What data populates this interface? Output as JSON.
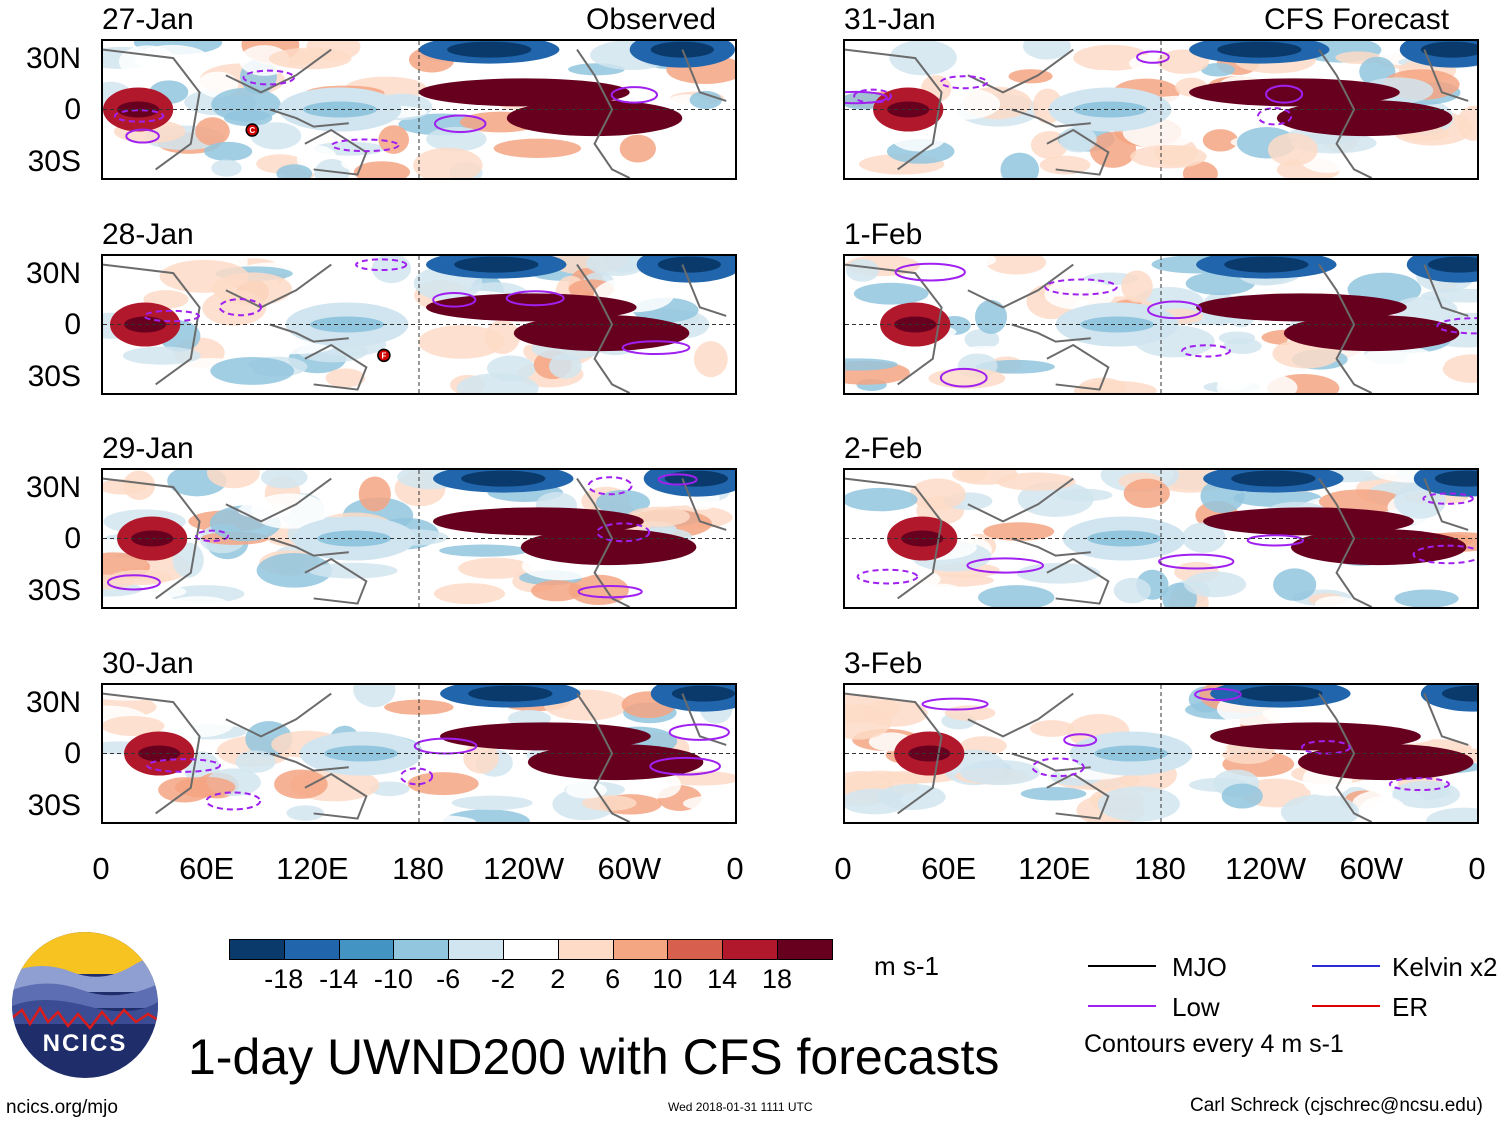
{
  "chart_data": {
    "type": "heatmap",
    "title": "1-day UWND200 with CFS forecasts",
    "variable": "200 hPa zonal wind anomaly",
    "units": "m s-1",
    "observed_label": "Observed",
    "forecast_label": "CFS Forecast",
    "panels_left": [
      {
        "date": "27-Jan",
        "storm": "C"
      },
      {
        "date": "28-Jan",
        "storm": "F"
      },
      {
        "date": "29-Jan",
        "storm": ""
      },
      {
        "date": "30-Jan",
        "storm": ""
      }
    ],
    "panels_right": [
      {
        "date": "31-Jan"
      },
      {
        "date": "1-Feb"
      },
      {
        "date": "2-Feb"
      },
      {
        "date": "3-Feb"
      }
    ],
    "y_ticks": [
      "30N",
      "0",
      "30S"
    ],
    "x_ticks": [
      "0",
      "60E",
      "120E",
      "180",
      "120W",
      "60W",
      "0"
    ],
    "xlim": [
      0,
      360
    ],
    "ylim": [
      -40,
      40
    ],
    "colorbar": {
      "labels": [
        "-18",
        "-14",
        "-10",
        "-6",
        "-2",
        "2",
        "6",
        "10",
        "14",
        "18"
      ],
      "colors": [
        "#0a3a6b",
        "#2166ac",
        "#4393c3",
        "#92c5de",
        "#d1e5f0",
        "#ffffff",
        "#fddbc7",
        "#f4a582",
        "#d6604d",
        "#b2182b",
        "#67001f"
      ],
      "units": "m s-1"
    },
    "legend": {
      "items": [
        {
          "label": "MJO",
          "color": "#000000"
        },
        {
          "label": "Kelvin x2",
          "color": "#2b2bd6"
        },
        {
          "label": "Low",
          "color": "#a020f0"
        },
        {
          "label": "ER",
          "color": "#e00000"
        }
      ],
      "note": "Contours every 4 m s-1"
    },
    "features": [
      {
        "lon_start": 180,
        "lon_end": 300,
        "lat": 10,
        "value": 18
      },
      {
        "lon_start": 230,
        "lon_end": 330,
        "lat": -5,
        "value": 18
      },
      {
        "lon_start": 0,
        "lon_end": 40,
        "lat": 0,
        "value": 14
      },
      {
        "lon_start": 180,
        "lon_end": 260,
        "lat": 35,
        "value": -18
      },
      {
        "lon_start": 300,
        "lon_end": 360,
        "lat": 35,
        "value": -18
      },
      {
        "lon_start": 100,
        "lon_end": 170,
        "lat": 0,
        "value": -6
      }
    ]
  },
  "footer": {
    "site": "ncics.org/mjo",
    "timestamp": "Wed 2018-01-31 1111 UTC",
    "author": "Carl Schreck (cjschrec@ncsu.edu)",
    "logo_text": "NCICS"
  }
}
